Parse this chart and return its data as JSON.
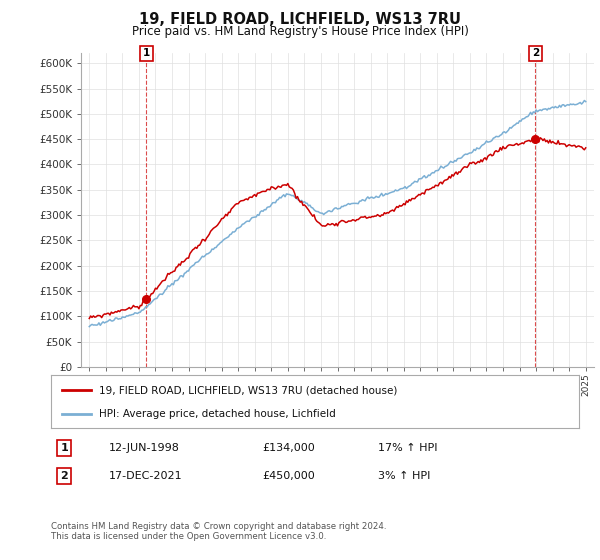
{
  "title": "19, FIELD ROAD, LICHFIELD, WS13 7RU",
  "subtitle": "Price paid vs. HM Land Registry's House Price Index (HPI)",
  "ylim": [
    0,
    620000
  ],
  "yticks": [
    0,
    50000,
    100000,
    150000,
    200000,
    250000,
    300000,
    350000,
    400000,
    450000,
    500000,
    550000,
    600000
  ],
  "ytick_labels": [
    "£0",
    "£50K",
    "£100K",
    "£150K",
    "£200K",
    "£250K",
    "£300K",
    "£350K",
    "£400K",
    "£450K",
    "£500K",
    "£550K",
    "£600K"
  ],
  "hpi_color": "#7bafd4",
  "price_color": "#cc0000",
  "marker1_year": 1998.45,
  "marker1_price": 134000,
  "marker2_year": 2021.96,
  "marker2_price": 450000,
  "legend_line1": "19, FIELD ROAD, LICHFIELD, WS13 7RU (detached house)",
  "legend_line2": "HPI: Average price, detached house, Lichfield",
  "table_row1": [
    "1",
    "12-JUN-1998",
    "£134,000",
    "17% ↑ HPI"
  ],
  "table_row2": [
    "2",
    "17-DEC-2021",
    "£450,000",
    "3% ↑ HPI"
  ],
  "footnote": "Contains HM Land Registry data © Crown copyright and database right 2024.\nThis data is licensed under the Open Government Licence v3.0.",
  "background_color": "#ffffff",
  "grid_color": "#e0e0e0"
}
